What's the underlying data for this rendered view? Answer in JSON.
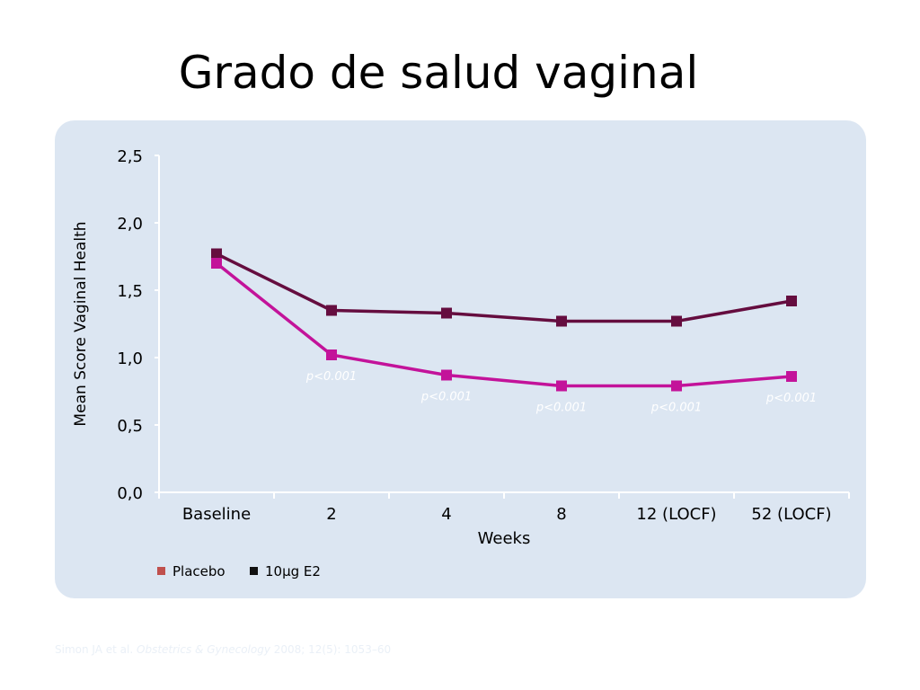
{
  "slide": {
    "title": "Grado de salud vaginal",
    "citation": {
      "authors": "Simon JA et al.",
      "journal": "Obstetrics & Gynecology",
      "details": "2008; 12(5): 1053–60"
    }
  },
  "colors": {
    "panel_bg": "#dce6f2",
    "placebo": "#c3139a",
    "e2": "#650d3f",
    "legend_placebo": "#c0504d",
    "legend_e2": "#111111",
    "annotation": "#ffffff"
  },
  "chart_data": {
    "type": "line",
    "xlabel": "Weeks",
    "ylabel": "Mean Score Vaginal Health",
    "categories": [
      "Baseline",
      "2",
      "4",
      "8",
      "12 (LOCF)",
      "52 (LOCF)"
    ],
    "ylim": [
      0,
      2.5
    ],
    "yticks": [
      "0,0",
      "0,5",
      "1,0",
      "1,5",
      "2,0",
      "2,5"
    ],
    "yticks_values": [
      0,
      0.5,
      1.0,
      1.5,
      2.0,
      2.5
    ],
    "grid": false,
    "legend_position": "bottom-left",
    "series": [
      {
        "name": "10µg E2",
        "values": [
          1.77,
          1.35,
          1.33,
          1.27,
          1.27,
          1.42
        ]
      },
      {
        "name": "Placebo",
        "values": [
          1.7,
          1.02,
          0.87,
          0.79,
          0.79,
          0.86
        ]
      }
    ],
    "annotations": [
      {
        "category": "2",
        "text": "p<0.001"
      },
      {
        "category": "4",
        "text": "p<0.001"
      },
      {
        "category": "8",
        "text": "p<0.001"
      },
      {
        "category": "12 (LOCF)",
        "text": "p<0.001"
      },
      {
        "category": "52 (LOCF)",
        "text": "p<0.001"
      }
    ]
  }
}
